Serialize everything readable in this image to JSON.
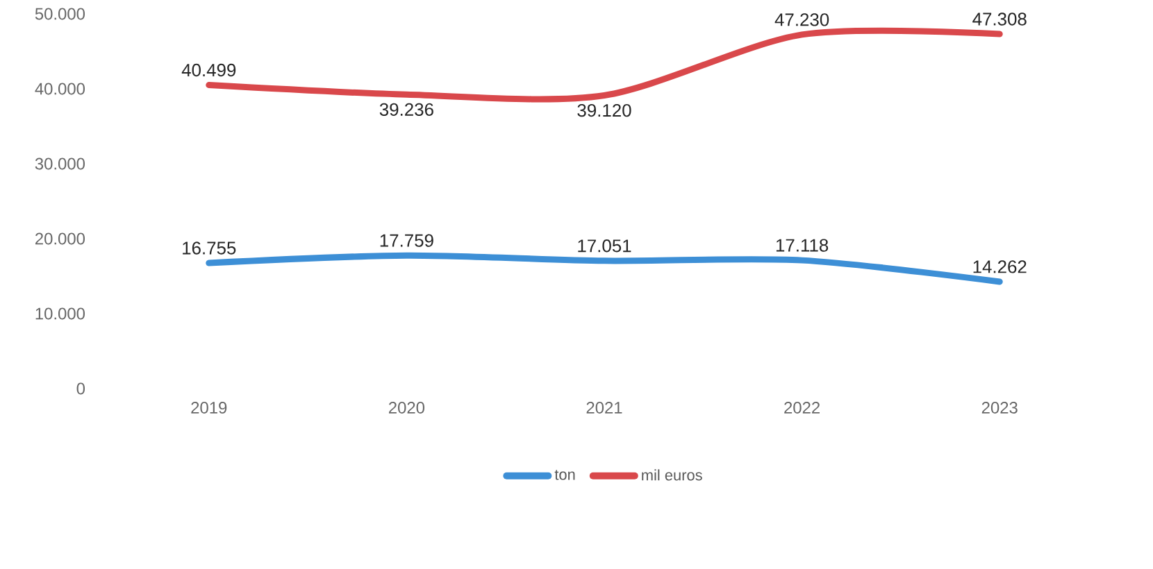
{
  "chart_data": {
    "type": "line",
    "categories": [
      "2019",
      "2020",
      "2021",
      "2022",
      "2023"
    ],
    "series": [
      {
        "name": "ton",
        "color": "#3d8fd6",
        "values": [
          16755,
          17759,
          17051,
          17118,
          14262
        ],
        "value_labels": [
          "16.755",
          "17.759",
          "17.051",
          "17.118",
          "14.262"
        ]
      },
      {
        "name": "mil euros",
        "color": "#d9484b",
        "values": [
          40499,
          39236,
          39120,
          47230,
          47308
        ],
        "value_labels": [
          "40.499",
          "39.236",
          "39.120",
          "47.230",
          "47.308"
        ]
      }
    ],
    "ylim": [
      0,
      50000
    ],
    "yticks": [
      0,
      {
        "value": 10000,
        "label": "10.000"
      },
      {
        "value": 20000,
        "label": "20.000"
      },
      {
        "value": 30000,
        "label": "30.000"
      },
      {
        "value": 40000,
        "label": "40.000"
      },
      {
        "value": 50000,
        "label": "50.000"
      }
    ],
    "grid": false,
    "legend": "bottom",
    "marker": "none",
    "line_style": "solid"
  }
}
